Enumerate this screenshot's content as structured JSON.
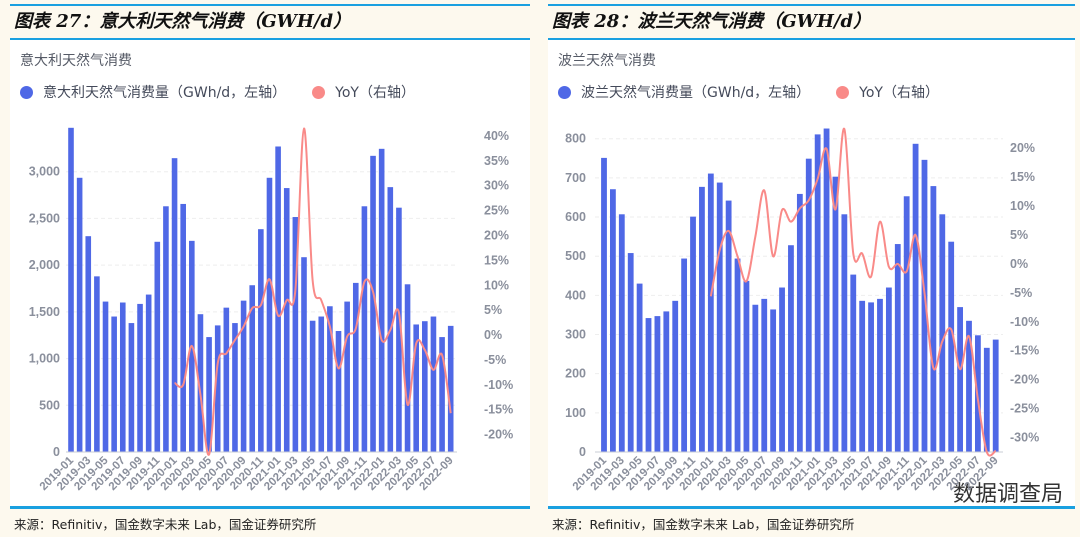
{
  "source_note": "来源：Refinitiv，国金数字未来 Lab，国金证券研究所",
  "watermark": "数据调查局",
  "colors": {
    "bar": "#4f68e6",
    "line": "#f98a88",
    "rule": "#1aa0e0"
  },
  "chart_data": [
    {
      "type": "bar+line",
      "figure_title": "图表 27：意大利天然气消费（GWH/d）",
      "title": "意大利天然气消费",
      "legend": [
        "意大利天然气消费量（GWh/d，左轴）",
        "YoY（右轴）"
      ],
      "legend_position": "top-left",
      "grid": true,
      "categories": [
        "2019-01",
        "2019-02",
        "2019-03",
        "2019-04",
        "2019-05",
        "2019-06",
        "2019-07",
        "2019-08",
        "2019-09",
        "2019-10",
        "2019-11",
        "2019-12",
        "2020-01",
        "2020-02",
        "2020-03",
        "2020-04",
        "2020-05",
        "2020-06",
        "2020-07",
        "2020-08",
        "2020-09",
        "2020-10",
        "2020-11",
        "2020-12",
        "2021-01",
        "2021-02",
        "2021-03",
        "2021-04",
        "2021-05",
        "2021-06",
        "2021-07",
        "2021-08",
        "2021-09",
        "2021-10",
        "2021-11",
        "2021-12",
        "2022-01",
        "2022-02",
        "2022-03",
        "2022-04",
        "2022-05",
        "2022-06",
        "2022-07",
        "2022-08",
        "2022-09"
      ],
      "x_tick_labels": [
        "2019-01",
        "2019-03",
        "2019-05",
        "2019-07",
        "2019-09",
        "2019-11",
        "2020-01",
        "2020-03",
        "2020-05",
        "2020-07",
        "2020-09",
        "2020-11",
        "2021-01",
        "2021-03",
        "2021-05",
        "2021-07",
        "2021-09",
        "2021-11",
        "2022-01",
        "2022-03",
        "2022-05",
        "2022-07",
        "2022-09"
      ],
      "series": [
        {
          "name": "意大利天然气消费量（GWh/d，左轴）",
          "axis": "left",
          "type": "bar",
          "values": [
            3470,
            2935,
            2310,
            1880,
            1610,
            1450,
            1600,
            1380,
            1585,
            1685,
            2250,
            2630,
            3145,
            2655,
            2260,
            1475,
            1230,
            1355,
            1545,
            1380,
            1620,
            1785,
            2385,
            2935,
            3270,
            2825,
            2515,
            2085,
            1405,
            1450,
            1560,
            1295,
            1610,
            1810,
            2630,
            3170,
            3245,
            2835,
            2615,
            1795,
            1365,
            1400,
            1450,
            1230,
            1350
          ]
        },
        {
          "name": "YoY（右轴）",
          "axis": "right",
          "type": "line",
          "unit": "%",
          "values": [
            null,
            null,
            null,
            null,
            null,
            null,
            null,
            null,
            null,
            null,
            null,
            null,
            -9.6,
            -10,
            -2.2,
            -12,
            -24,
            -5.7,
            -3.7,
            -1,
            1.7,
            5.4,
            6,
            11.2,
            3.9,
            7,
            9,
            41.5,
            11,
            7,
            1.7,
            -6.7,
            -0.3,
            1.3,
            10.7,
            8.7,
            -1,
            1,
            4.5,
            -14,
            -1.7,
            -3,
            -7,
            -4,
            -15.7
          ]
        }
      ],
      "y_left": {
        "ylim": [
          0,
          3500
        ],
        "ticks": [
          0,
          500,
          1000,
          1500,
          2000,
          2500,
          3000
        ],
        "tick_labels": [
          "0",
          "500",
          "1,000",
          "1,500",
          "2,000",
          "2,500",
          "3,000"
        ]
      },
      "y_right": {
        "ylim": [
          -23.5,
          42.2
        ],
        "ticks": [
          -20,
          -15,
          -10,
          -5,
          0,
          5,
          10,
          15,
          20,
          25,
          30,
          35,
          40
        ],
        "tick_labels": [
          "-20%",
          "-15%",
          "-10%",
          "-5%",
          "0%",
          "5%",
          "10%",
          "15%",
          "20%",
          "25%",
          "30%",
          "35%",
          "40%"
        ]
      }
    },
    {
      "type": "bar+line",
      "figure_title": "图表 28：波兰天然气消费（GWH/d）",
      "title": "波兰天然气消费",
      "legend": [
        "波兰天然气消费量（GWh/d，左轴）",
        "YoY（右轴）"
      ],
      "legend_position": "top-left",
      "grid": true,
      "categories": [
        "2019-01",
        "2019-02",
        "2019-03",
        "2019-04",
        "2019-05",
        "2019-06",
        "2019-07",
        "2019-08",
        "2019-09",
        "2019-10",
        "2019-11",
        "2019-12",
        "2020-01",
        "2020-02",
        "2020-03",
        "2020-04",
        "2020-05",
        "2020-06",
        "2020-07",
        "2020-08",
        "2020-09",
        "2020-10",
        "2020-11",
        "2020-12",
        "2021-01",
        "2021-02",
        "2021-03",
        "2021-04",
        "2021-05",
        "2021-06",
        "2021-07",
        "2021-08",
        "2021-09",
        "2021-10",
        "2021-11",
        "2021-12",
        "2022-01",
        "2022-02",
        "2022-03",
        "2022-04",
        "2022-05",
        "2022-06",
        "2022-07",
        "2022-08",
        "2022-09"
      ],
      "x_tick_labels": [
        "2019-01",
        "2019-03",
        "2019-05",
        "2019-07",
        "2019-09",
        "2019-11",
        "2020-01",
        "2020-03",
        "2020-05",
        "2020-07",
        "2020-09",
        "2020-11",
        "2021-01",
        "2021-03",
        "2021-05",
        "2021-07",
        "2021-09",
        "2021-11",
        "2022-01",
        "2022-03",
        "2022-05",
        "2022-07",
        "2022-09"
      ],
      "series": [
        {
          "name": "波兰天然气消费量（GWh/d，左轴）",
          "axis": "left",
          "type": "bar",
          "values": [
            751,
            671,
            607,
            508,
            430,
            342,
            347,
            359,
            386,
            494,
            601,
            677,
            711,
            688,
            642,
            494,
            437,
            376,
            391,
            364,
            420,
            528,
            659,
            749,
            811,
            826,
            703,
            607,
            453,
            386,
            382,
            391,
            420,
            531,
            653,
            787,
            746,
            679,
            607,
            537,
            370,
            335,
            298,
            266,
            287
          ]
        },
        {
          "name": "YoY（右轴）",
          "axis": "right",
          "type": "line",
          "unit": "%",
          "values": [
            null,
            null,
            null,
            null,
            null,
            null,
            null,
            null,
            null,
            null,
            null,
            null,
            -5.6,
            2.4,
            5.7,
            1.3,
            -3,
            4.7,
            12.7,
            1.3,
            9.3,
            7.3,
            9.6,
            11,
            14.7,
            19.9,
            9.4,
            23.3,
            1.8,
            1.8,
            -2.2,
            7.3,
            -0.5,
            0,
            -1.3,
            5,
            -5,
            -18,
            -13.4,
            -11.3,
            -18.2,
            -12.5,
            -23.4,
            -32.5,
            -32.3
          ]
        }
      ],
      "y_left": {
        "ylim": [
          0,
          835
        ],
        "ticks": [
          0,
          100,
          200,
          300,
          400,
          500,
          600,
          700,
          800
        ],
        "tick_labels": [
          "0",
          "100",
          "200",
          "300",
          "400",
          "500",
          "600",
          "700",
          "800"
        ]
      },
      "y_right": {
        "ylim": [
          -32.5,
          24
        ],
        "ticks": [
          -30,
          -25,
          -20,
          -15,
          -10,
          -5,
          0,
          5,
          10,
          15,
          20
        ],
        "tick_labels": [
          "-30%",
          "-25%",
          "-20%",
          "-15%",
          "-10%",
          "-5%",
          "0%",
          "5%",
          "10%",
          "15%",
          "20%"
        ]
      }
    }
  ]
}
